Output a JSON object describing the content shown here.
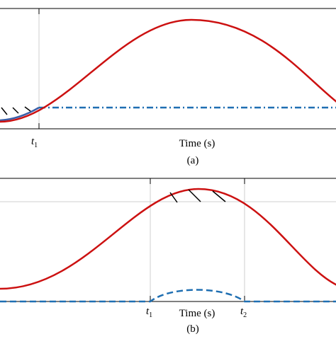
{
  "panels": [
    {
      "markers": [
        {
          "var": "t",
          "sub": "1"
        }
      ],
      "xlabel": "Time (s)",
      "caption": "(a)"
    },
    {
      "markers": [
        {
          "var": "t",
          "sub": "1"
        },
        {
          "var": "t",
          "sub": "2"
        }
      ],
      "xlabel": "Time (s)",
      "caption": "(b)"
    }
  ]
}
